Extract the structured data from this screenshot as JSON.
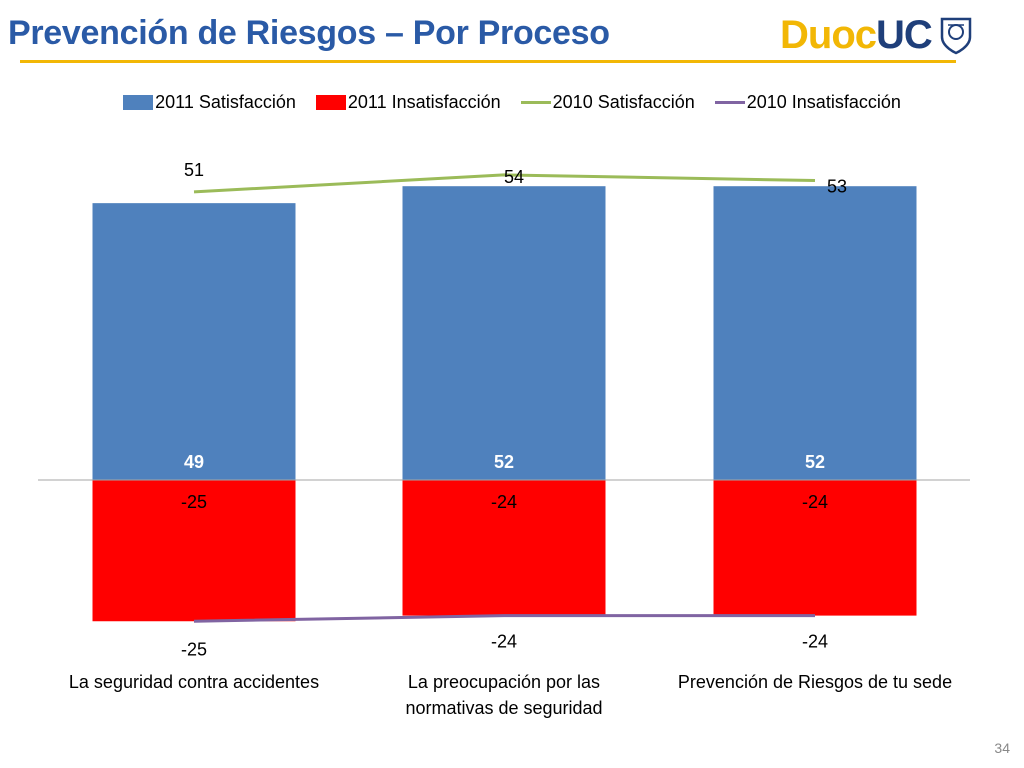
{
  "slide": {
    "title": "Prevención de Riesgos – Por Proceso",
    "page_number": "34",
    "logo": {
      "part1": "Duoc",
      "part2": "UC"
    },
    "accent_color": "#f2b705",
    "title_color": "#2a5aa6"
  },
  "chart_data": {
    "type": "bar",
    "title": "",
    "xlabel": "",
    "ylabel": "",
    "ylim": [
      -25,
      54
    ],
    "grid": false,
    "legend_position": "top",
    "categories": [
      [
        "La seguridad contra accidentes"
      ],
      [
        "La preocupación por las",
        "normativas de seguridad"
      ],
      [
        "Prevención de Riesgos de tu sede"
      ]
    ],
    "series": [
      {
        "name": "2011 Satisfacción",
        "kind": "bar",
        "color": "#4f81bd",
        "values": [
          49,
          52,
          52
        ]
      },
      {
        "name": "2011 Insatisfacción",
        "kind": "bar",
        "color": "#ff0000",
        "values": [
          -25,
          -24,
          -24
        ]
      },
      {
        "name": "2010 Satisfacción",
        "kind": "line",
        "color": "#9bbb59",
        "values": [
          51,
          54,
          53
        ]
      },
      {
        "name": "2010 Insatisfacción",
        "kind": "line",
        "color": "#8064a2",
        "values": [
          -25,
          -24,
          -24
        ]
      }
    ]
  }
}
